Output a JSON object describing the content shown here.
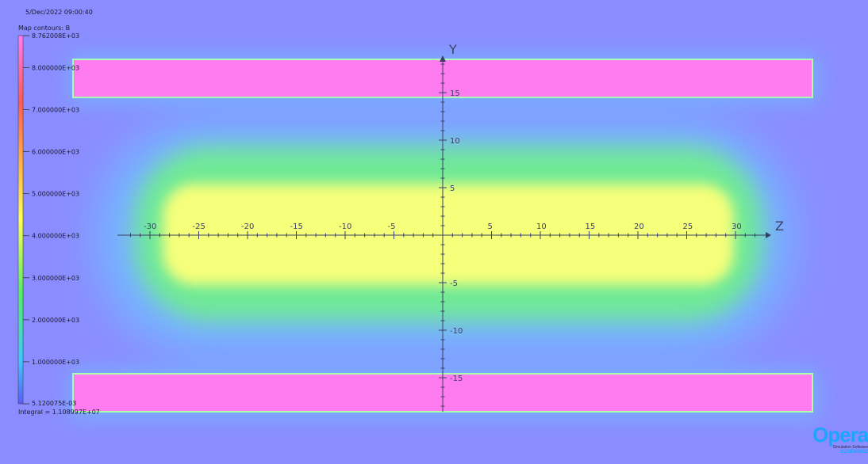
{
  "header": {
    "timestamp": "5/Dec/2022 09:00:40",
    "contour_title": "Map contours: B"
  },
  "legend": {
    "max_label": "8.762008E+03",
    "min_label": "5.120075E-03",
    "ticks": [
      {
        "value": 8000,
        "label": "8.000000E+03"
      },
      {
        "value": 7000,
        "label": "7.000000E+03"
      },
      {
        "value": 6000,
        "label": "6.000000E+03"
      },
      {
        "value": 5000,
        "label": "5.000000E+03"
      },
      {
        "value": 4000,
        "label": "4.000000E+03"
      },
      {
        "value": 3000,
        "label": "3.000000E+03"
      },
      {
        "value": 2000,
        "label": "2.000000E+03"
      },
      {
        "value": 1000,
        "label": "1.000000E+03"
      }
    ],
    "min_value": 0.005120075,
    "max_value": 8762.008,
    "colors": [
      "#5a5cff",
      "#3fc9ff",
      "#6fff6f",
      "#ffff66",
      "#ffb347",
      "#ff6a5a",
      "#ff7cf6"
    ],
    "integral": "Integral = 1.108997E+07"
  },
  "axes": {
    "z_label": "Z",
    "y_label": "Y",
    "z_ticks": [
      "-30",
      "-25",
      "-20",
      "-15",
      "-10",
      "-5",
      "5",
      "10",
      "15",
      "20",
      "25",
      "30"
    ],
    "y_ticks": [
      "15",
      "10",
      "5",
      "-5",
      "-10",
      "-15"
    ]
  },
  "field": {
    "background": "#8b8cff",
    "magnet_color": "#ff7cf0",
    "magnet_edge": "#a8ffb0",
    "core_color": "#f5ff7a",
    "mid_color": "#6ff08a",
    "outer_color": "#63d6ff"
  },
  "brand": {
    "name": "Opera",
    "tagline": "Simulation Software",
    "company": "CZSEM8032"
  }
}
